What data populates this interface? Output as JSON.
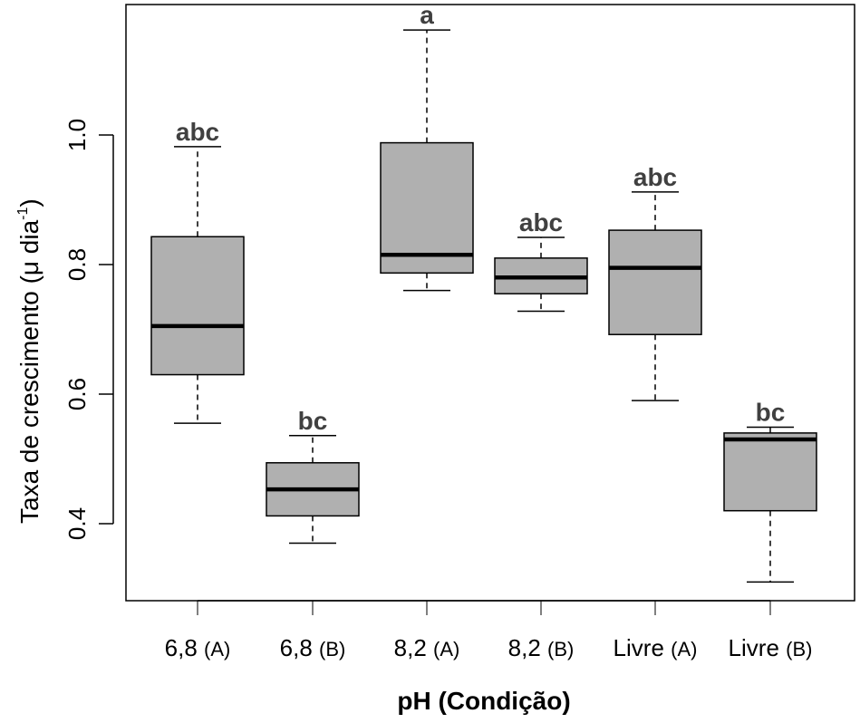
{
  "chart_data": {
    "type": "boxplot",
    "title": "",
    "xlabel": "pH (Condição)",
    "ylabel_main": "Taxa de crescimento (μ dia",
    "ylabel_sup": "-1",
    "ylabel_close": ")",
    "ylim": [
      0.27,
      1.2
    ],
    "yticks": [
      0.4,
      0.6,
      0.8,
      1.0
    ],
    "ytick_labels": [
      "0.4",
      "0.6",
      "0.8",
      "1.0"
    ],
    "grid": false,
    "box_color": "#b0b0b0",
    "categories": [
      {
        "main": "6,8",
        "sub": "(A)",
        "letter": "abc",
        "whisker_low": 0.555,
        "q1": 0.63,
        "median": 0.705,
        "q3": 0.843,
        "whisker_high": 0.982
      },
      {
        "main": "6,8",
        "sub": "(B)",
        "letter": "bc",
        "whisker_low": 0.37,
        "q1": 0.412,
        "median": 0.453,
        "q3": 0.494,
        "whisker_high": 0.536
      },
      {
        "main": "8,2",
        "sub": "(A)",
        "letter": "a",
        "whisker_low": 0.76,
        "q1": 0.787,
        "median": 0.815,
        "q3": 0.988,
        "whisker_high": 1.162
      },
      {
        "main": "8,2",
        "sub": "(B)",
        "letter": "abc",
        "whisker_low": 0.728,
        "q1": 0.755,
        "median": 0.78,
        "q3": 0.81,
        "whisker_high": 0.842
      },
      {
        "main": "Livre",
        "sub": "(A)",
        "letter": "abc",
        "whisker_low": 0.59,
        "q1": 0.692,
        "median": 0.795,
        "q3": 0.853,
        "whisker_high": 0.912
      },
      {
        "main": "Livre",
        "sub": "(B)",
        "letter": "bc",
        "whisker_low": 0.31,
        "q1": 0.42,
        "median": 0.53,
        "q3": 0.54,
        "whisker_high": 0.549
      }
    ]
  }
}
